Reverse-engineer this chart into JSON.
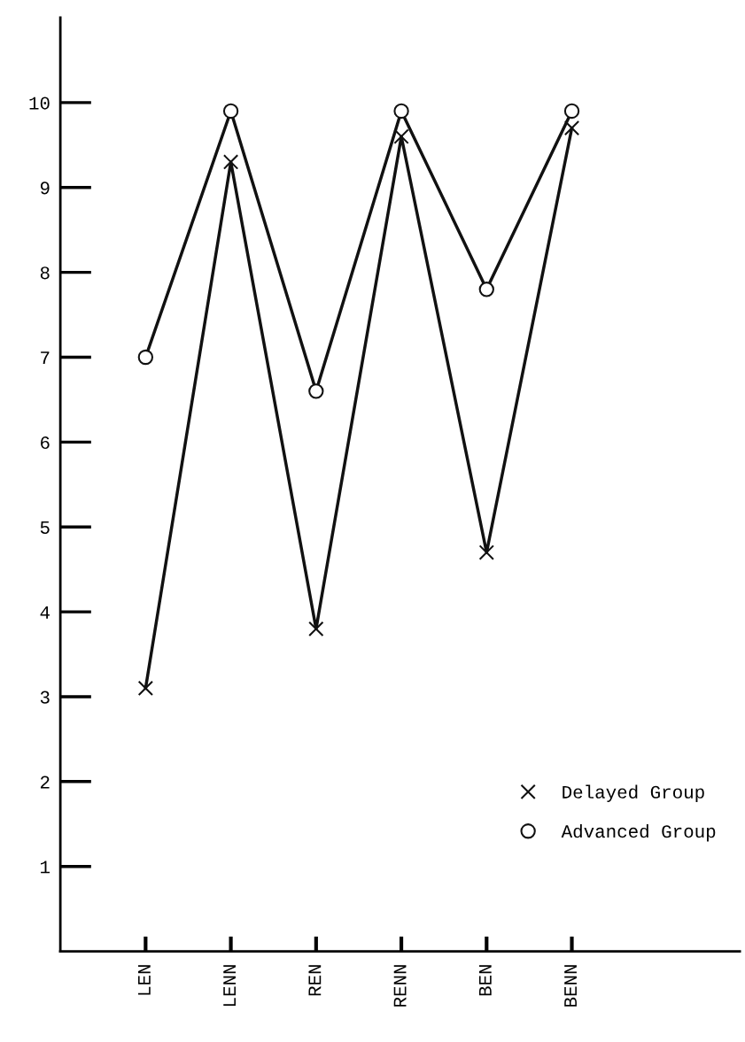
{
  "chart_data": {
    "type": "line",
    "categories": [
      "LEN",
      "LENN",
      "REN",
      "RENN",
      "BEN",
      "BENN"
    ],
    "series": [
      {
        "name": "Delayed Group",
        "color": "#111111",
        "marker": "cross",
        "values": [
          3.1,
          9.3,
          3.8,
          9.6,
          4.7,
          9.7
        ]
      },
      {
        "name": "Advanced Group",
        "color": "#111111",
        "marker": "circle",
        "values": [
          7.0,
          9.9,
          6.6,
          9.9,
          7.8,
          9.9
        ]
      }
    ],
    "ylim": [
      0,
      11
    ],
    "yticks": [
      1,
      2,
      3,
      4,
      5,
      6,
      7,
      8,
      9,
      10
    ],
    "grid": false,
    "legend": "bottom right",
    "line_style": "solid"
  }
}
